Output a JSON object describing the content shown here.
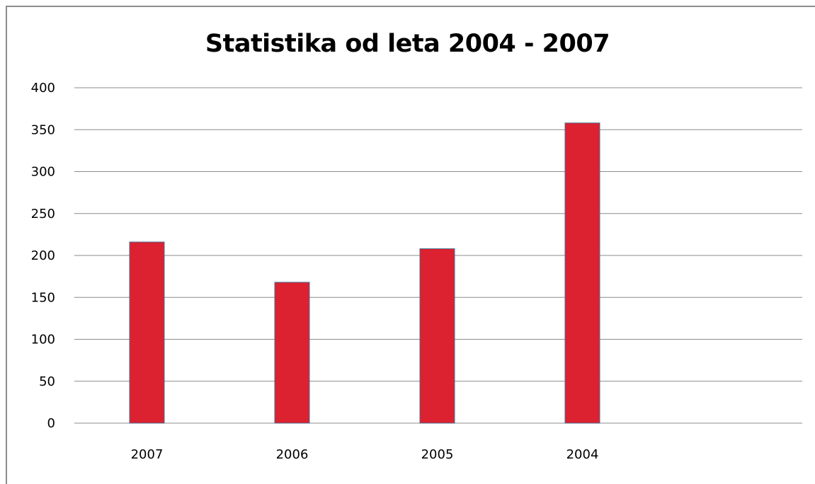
{
  "chart_data": {
    "type": "bar",
    "title": "Statistika od leta 2004 - 2007",
    "xlabel": "",
    "ylabel": "",
    "categories": [
      "2007",
      "2006",
      "2005",
      "2004"
    ],
    "values": [
      216,
      168,
      208,
      358
    ],
    "ylim": [
      0,
      400
    ],
    "yticks": [
      "0",
      "50",
      "100",
      "150",
      "200",
      "250",
      "300",
      "350",
      "400"
    ],
    "grid": true,
    "legend": "none",
    "bar_color": "#dc2130",
    "bar_edge_color": "#4a6f8f",
    "grid_color": "#8c8c8c"
  }
}
